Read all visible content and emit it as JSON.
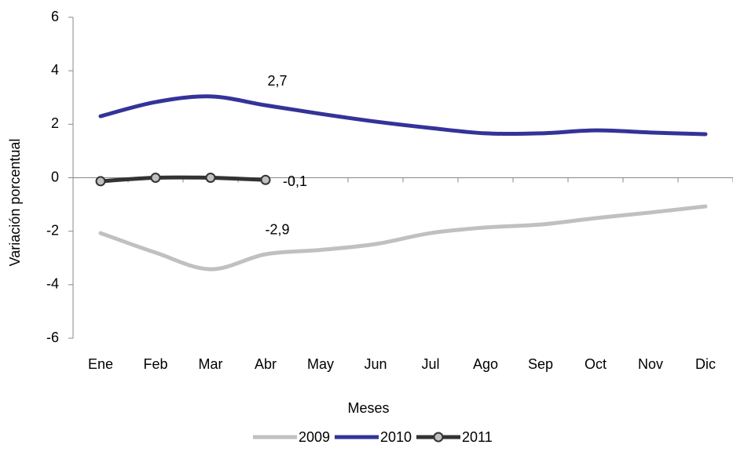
{
  "chart_data": {
    "type": "line",
    "categories": [
      "Ene",
      "Feb",
      "Mar",
      "Abr",
      "May",
      "Jun",
      "Jul",
      "Ago",
      "Sep",
      "Oct",
      "Nov",
      "Dic"
    ],
    "series": [
      {
        "name": "2009",
        "color": "#c0c0c0",
        "values": [
          -2.07,
          -2.8,
          -3.42,
          -2.86,
          -2.7,
          -2.48,
          -2.07,
          -1.86,
          -1.75,
          -1.51,
          -1.3,
          -1.07
        ],
        "value_labels": [
          null,
          null,
          null,
          "-2,9",
          null,
          null,
          null,
          null,
          null,
          null,
          null,
          null
        ]
      },
      {
        "name": "2010",
        "color": "#333399",
        "values": [
          2.3,
          2.83,
          3.04,
          2.71,
          2.39,
          2.1,
          1.86,
          1.66,
          1.66,
          1.77,
          1.69,
          1.63
        ],
        "value_labels": [
          null,
          null,
          null,
          "2,7",
          null,
          null,
          null,
          null,
          null,
          null,
          null,
          null
        ]
      },
      {
        "name": "2011",
        "color": "#333333",
        "markers": true,
        "values": [
          -0.13,
          0,
          0,
          -0.08,
          null,
          null,
          null,
          null,
          null,
          null,
          null,
          null
        ],
        "value_labels": [
          null,
          null,
          null,
          "-0,1",
          null,
          null,
          null,
          null,
          null,
          null,
          null,
          null
        ]
      }
    ],
    "xlabel": "Meses",
    "ylabel": "Variación porcentual",
    "ylim": [
      -6,
      6
    ],
    "yticks": [
      -6,
      -4,
      -2,
      0,
      2,
      4,
      6
    ],
    "grid": false,
    "legend": "bottom"
  }
}
